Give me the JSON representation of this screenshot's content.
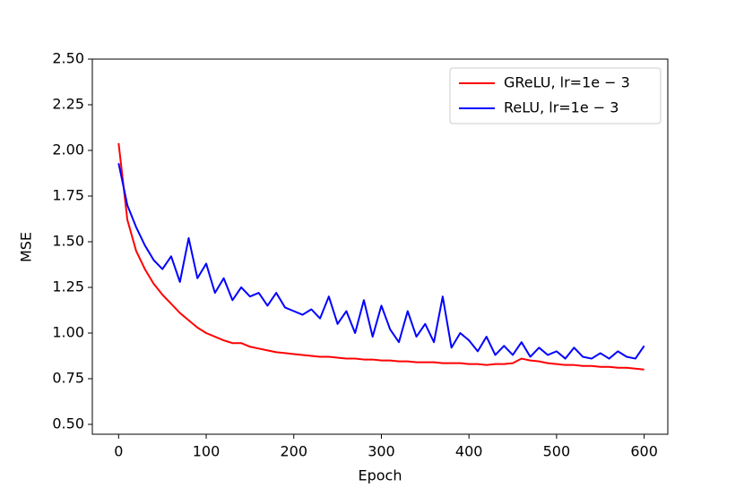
{
  "chart_data": {
    "type": "line",
    "xlabel": "Epoch",
    "ylabel": "MSE",
    "x": [
      0,
      10,
      20,
      30,
      40,
      50,
      60,
      70,
      80,
      90,
      100,
      110,
      120,
      130,
      140,
      150,
      160,
      170,
      180,
      190,
      200,
      210,
      220,
      230,
      240,
      250,
      260,
      270,
      280,
      290,
      300,
      310,
      320,
      330,
      340,
      350,
      360,
      370,
      380,
      390,
      400,
      410,
      420,
      430,
      440,
      450,
      460,
      470,
      480,
      490,
      500,
      510,
      520,
      530,
      540,
      550,
      560,
      570,
      580,
      590,
      600
    ],
    "series": [
      {
        "name": "GReLU, lr=1e − 3",
        "color": "#ff0000",
        "values": [
          2.04,
          1.62,
          1.45,
          1.35,
          1.27,
          1.21,
          1.16,
          1.11,
          1.07,
          1.03,
          1.0,
          0.98,
          0.96,
          0.945,
          0.945,
          0.925,
          0.915,
          0.905,
          0.895,
          0.89,
          0.885,
          0.88,
          0.875,
          0.87,
          0.87,
          0.865,
          0.86,
          0.86,
          0.855,
          0.855,
          0.85,
          0.85,
          0.845,
          0.845,
          0.84,
          0.84,
          0.84,
          0.835,
          0.835,
          0.835,
          0.83,
          0.83,
          0.825,
          0.83,
          0.83,
          0.835,
          0.86,
          0.85,
          0.845,
          0.835,
          0.83,
          0.825,
          0.825,
          0.82,
          0.82,
          0.815,
          0.815,
          0.81,
          0.81,
          0.805,
          0.8
        ]
      },
      {
        "name": "ReLU, lr=1e − 3",
        "color": "#0000ff",
        "values": [
          1.93,
          1.7,
          1.58,
          1.48,
          1.4,
          1.35,
          1.42,
          1.28,
          1.52,
          1.3,
          1.38,
          1.22,
          1.3,
          1.18,
          1.25,
          1.2,
          1.22,
          1.15,
          1.22,
          1.14,
          1.12,
          1.1,
          1.13,
          1.08,
          1.2,
          1.05,
          1.12,
          1.0,
          1.18,
          0.98,
          1.15,
          1.02,
          0.95,
          1.12,
          0.98,
          1.05,
          0.95,
          1.2,
          0.92,
          1.0,
          0.96,
          0.9,
          0.98,
          0.88,
          0.93,
          0.88,
          0.95,
          0.87,
          0.92,
          0.88,
          0.9,
          0.86,
          0.92,
          0.87,
          0.86,
          0.89,
          0.86,
          0.9,
          0.87,
          0.86,
          0.93
        ]
      }
    ],
    "xlim": [
      -30,
      627
    ],
    "ylim": [
      0.446,
      2.5
    ],
    "xticks": [
      0,
      100,
      200,
      300,
      400,
      500,
      600
    ],
    "yticks": [
      {
        "value": 0.5,
        "label": "0.50"
      },
      {
        "value": 0.75,
        "label": "0.75"
      },
      {
        "value": 1.0,
        "label": "1.00"
      },
      {
        "value": 1.25,
        "label": "1.25"
      },
      {
        "value": 1.5,
        "label": "1.50"
      },
      {
        "value": 1.75,
        "label": "1.75"
      },
      {
        "value": 2.0,
        "label": "2.00"
      },
      {
        "value": 2.25,
        "label": "2.25"
      },
      {
        "value": 2.5,
        "label": "2.50"
      }
    ],
    "legend": "upper right",
    "grid": false
  }
}
